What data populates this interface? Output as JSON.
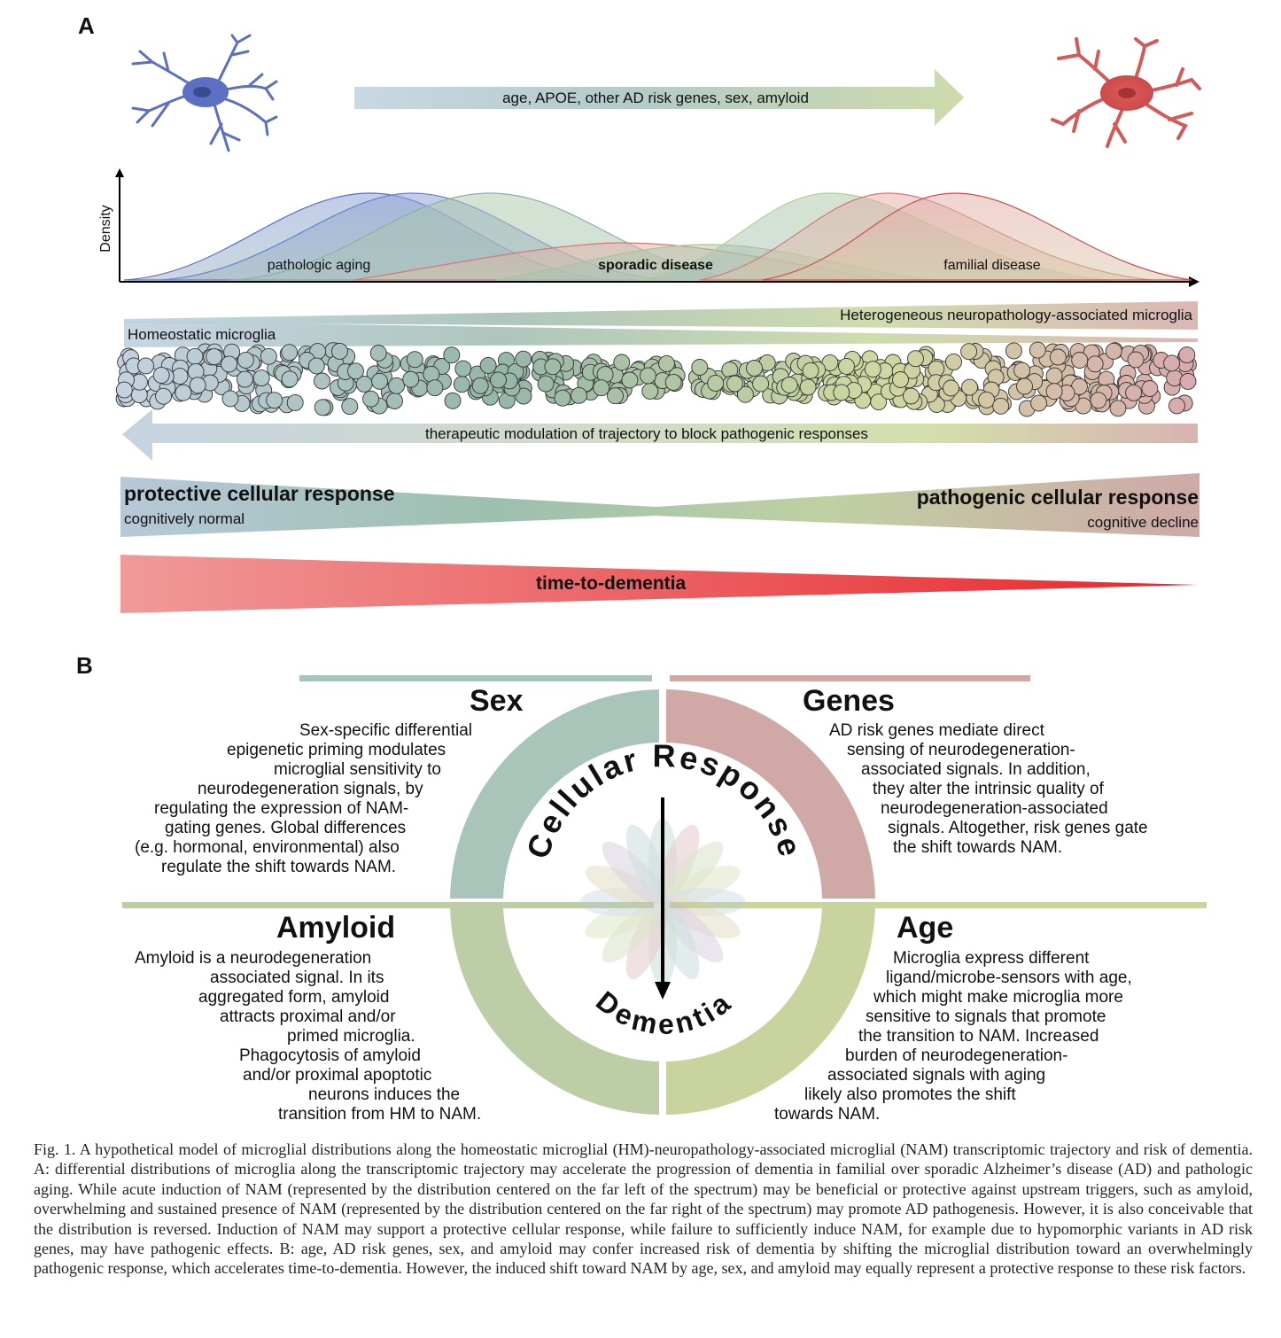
{
  "panel_a": {
    "letter": "A",
    "top_arrow_label": "age, APOE, other AD risk genes, sex, amyloid",
    "density_axis_label": "Density",
    "distribution_labels": [
      "pathologic aging",
      "sporadic disease",
      "familial disease"
    ],
    "hnam_label": "Heterogeneous neuropathology-associated microglia",
    "homeostatic_label": "Homeostatic microglia",
    "therapeutic_label": "therapeutic modulation of trajectory to block pathogenic responses",
    "protective_title": "protective cellular response",
    "protective_sub": "cognitively normal",
    "pathogenic_title": "pathogenic cellular response",
    "pathogenic_sub": "cognitive decline",
    "dementia_label": "time-to-dementia",
    "colors": {
      "healthy_neuron": "#5c6fc2",
      "diseased_neuron": "#d45a5a",
      "blue_gray": "#b7cadb",
      "green": "#c4d6a4",
      "rose": "#d2aaa8",
      "red": "#e8343a"
    }
  },
  "panel_b": {
    "letter": "B",
    "center_top": "Cellular Response",
    "center_bottom": "Dementia",
    "quadrants": {
      "sex": {
        "title": "Sex",
        "lines": [
          "Sex-specific differential",
          "epigenetic priming modulates",
          "microglial sensitivity to",
          "neurodegeneration signals, by",
          "regulating the expression of NAM-",
          "gating genes. Global differences",
          "(e.g. hormonal, environmental) also",
          "regulate the shift towards NAM."
        ]
      },
      "genes": {
        "title": "Genes",
        "lines": [
          "AD risk genes mediate direct",
          "sensing of neurodegeneration-",
          "associated signals. In addition,",
          "they alter the intrinsic quality of",
          "neurodegeneration-associated",
          "signals. Altogether, risk genes gate",
          "the shift towards NAM."
        ]
      },
      "amyloid": {
        "title": "Amyloid",
        "lines": [
          "Amyloid is a neurodegeneration",
          "associated signal. In its",
          "aggregated form, amyloid",
          "attracts proximal and/or",
          "primed microglia.",
          "Phagocytosis of amyloid",
          "and/or proximal apoptotic",
          "neurons induces the",
          "transition from HM to NAM."
        ]
      },
      "age": {
        "title": "Age",
        "lines": [
          "Microglia express different",
          "ligand/microbe-sensors with age,",
          "which might make microglia more",
          "sensitive to signals that promote",
          "the transition to NAM. Increased",
          "burden of neurodegeneration-",
          "associated signals with aging",
          "likely also promotes the shift",
          "towards NAM."
        ]
      }
    },
    "colors": {
      "sex": "#a9c4b9",
      "genes": "#d0a9a6",
      "amyloid": "#bdcda5",
      "age": "#c9d39e"
    }
  },
  "caption": "Fig. 1. A hypothetical model of microglial distributions along the homeostatic microglial (HM)-neuropathology-associated microglial (NAM) transcriptomic trajectory and risk of dementia. A: differential distributions of microglia along the transcriptomic trajectory may accelerate the progression of dementia in familial over sporadic Alzheimer’s disease (AD) and pathologic aging. While acute induction of NAM (represented by the distribution centered on the far left of the spectrum) may be beneficial or protective against upstream triggers, such as amyloid, overwhelming and sustained presence of NAM (represented by the distribution centered on the far right of the spectrum) may promote AD pathogenesis. However, it is also conceivable that the distribution is reversed. Induction of NAM may support a protective cellular response, while failure to sufficiently induce NAM, for example due to hypomorphic variants in AD risk genes, may have pathogenic effects. B: age, AD risk genes, sex, and amyloid may confer increased risk of dementia by shifting the microglial distribution toward an overwhelmingly pathogenic response, which accelerates time-to-dementia. However, the induced shift toward NAM by age, sex, and amyloid may equally represent a protective response to these risk factors."
}
